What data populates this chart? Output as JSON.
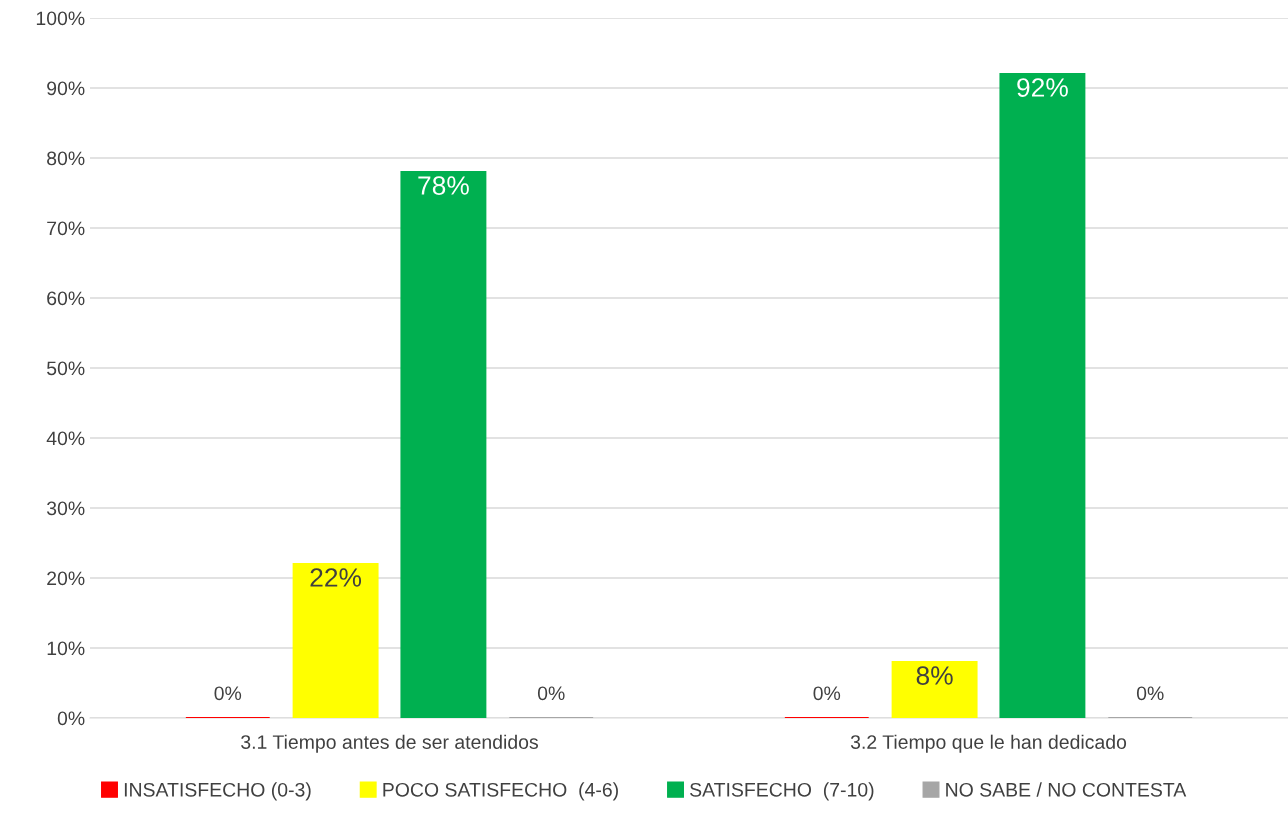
{
  "chart_data": {
    "type": "bar",
    "categories": [
      "3.1 Tiempo antes de ser atendidos",
      "3.2 Tiempo que le han dedicado"
    ],
    "series": [
      {
        "name": "INSATISFECHO (0-3)",
        "color": "#ff0000",
        "values": [
          0,
          0
        ],
        "value_labels": [
          "0%",
          "0%"
        ]
      },
      {
        "name": "POCO SATISFECHO  (4-6)",
        "color": "#ffff00",
        "values": [
          22,
          8
        ],
        "value_labels": [
          "22%",
          "8%"
        ]
      },
      {
        "name": "SATISFECHO  (7-10)",
        "color": "#00b050",
        "values": [
          78,
          92
        ],
        "value_labels": [
          "78%",
          "92%"
        ]
      },
      {
        "name": "NO SABE / NO CONTESTA",
        "color": "#a6a6a6",
        "values": [
          0,
          0
        ],
        "value_labels": [
          "0%",
          "0%"
        ]
      }
    ],
    "ylim": [
      0,
      100
    ],
    "yticks": [
      {
        "value": 0,
        "label": "0%"
      },
      {
        "value": 10,
        "label": "10%"
      },
      {
        "value": 20,
        "label": "20%"
      },
      {
        "value": 30,
        "label": "30%"
      },
      {
        "value": 40,
        "label": "40%"
      },
      {
        "value": 50,
        "label": "50%"
      },
      {
        "value": 60,
        "label": "60%"
      },
      {
        "value": 70,
        "label": "70%"
      },
      {
        "value": 80,
        "label": "80%"
      },
      {
        "value": 90,
        "label": "90%"
      },
      {
        "value": 100,
        "label": "100%"
      }
    ],
    "grid": "y",
    "legend": "bottom"
  }
}
